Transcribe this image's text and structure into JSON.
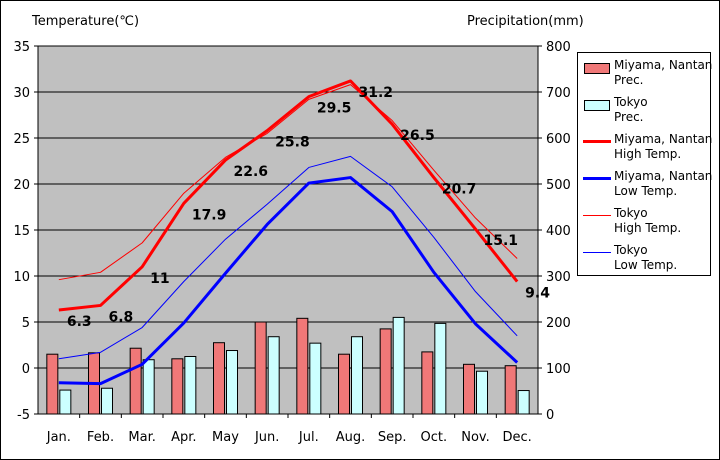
{
  "chart_data": {
    "type": "bar+line",
    "left_axis_title": "Temperature(℃)",
    "right_axis_title": "Precipitation(mm)",
    "categories": [
      "Jan.",
      "Feb.",
      "Mar.",
      "Apr.",
      "May",
      "Jun.",
      "Jul.",
      "Aug.",
      "Sep.",
      "Oct.",
      "Nov.",
      "Dec."
    ],
    "left_axis": {
      "min": -5,
      "max": 35,
      "ticks": [
        -5,
        0,
        5,
        10,
        15,
        20,
        25,
        30,
        35
      ]
    },
    "right_axis": {
      "min": 0,
      "max": 800,
      "ticks": [
        0,
        100,
        200,
        300,
        400,
        500,
        600,
        700,
        800
      ]
    },
    "grid": "horizontal",
    "legend_position": "right",
    "bar_series": [
      {
        "name": "Miyama, Nantan\nPrec.",
        "color": "#f07878",
        "values": [
          130,
          133,
          143,
          120,
          155,
          200,
          208,
          130,
          185,
          135,
          108,
          105
        ]
      },
      {
        "name": "Tokyo\nPrec.",
        "color": "#ccffff",
        "values": [
          52,
          56,
          118,
          125,
          138,
          168,
          154,
          168,
          210,
          197,
          93,
          51
        ]
      }
    ],
    "line_series": [
      {
        "name": "Miyama, Nantan\nHigh Temp.",
        "color": "#ff0000",
        "width": 3,
        "values": [
          6.3,
          6.8,
          11,
          17.9,
          22.6,
          25.8,
          29.5,
          31.2,
          26.5,
          20.7,
          15.1,
          9.4
        ]
      },
      {
        "name": "Miyama, Nantan\nLow Temp.",
        "color": "#0000ff",
        "width": 3,
        "values": [
          -1.6,
          -1.7,
          0.4,
          4.9,
          10.3,
          15.6,
          20.1,
          20.7,
          17,
          10.4,
          4.8,
          0.6
        ]
      },
      {
        "name": "Tokyo\nHigh Temp.",
        "color": "#ff0000",
        "width": 1,
        "values": [
          9.6,
          10.4,
          13.6,
          19,
          22.9,
          25.5,
          29.2,
          30.8,
          26.9,
          21.5,
          16.3,
          11.9
        ]
      },
      {
        "name": "Tokyo\nLow Temp.",
        "color": "#0000ff",
        "width": 1,
        "values": [
          1,
          1.7,
          4.4,
          9.4,
          14,
          17.8,
          21.8,
          23,
          19.7,
          14.2,
          8.3,
          3.5
        ]
      }
    ],
    "data_labels": [
      "6.3",
      "6.8",
      "11",
      "17.9",
      "22.6",
      "25.8",
      "29.5",
      "31.2",
      "26.5",
      "20.7",
      "15.1",
      "9.4"
    ],
    "legend": [
      "Miyama, Nantan\nPrec.",
      "Tokyo\nPrec.",
      "Miyama, Nantan\nHigh Temp.",
      "Miyama, Nantan\nLow Temp.",
      "Tokyo\nHigh Temp.",
      "Tokyo\nLow Temp."
    ]
  }
}
